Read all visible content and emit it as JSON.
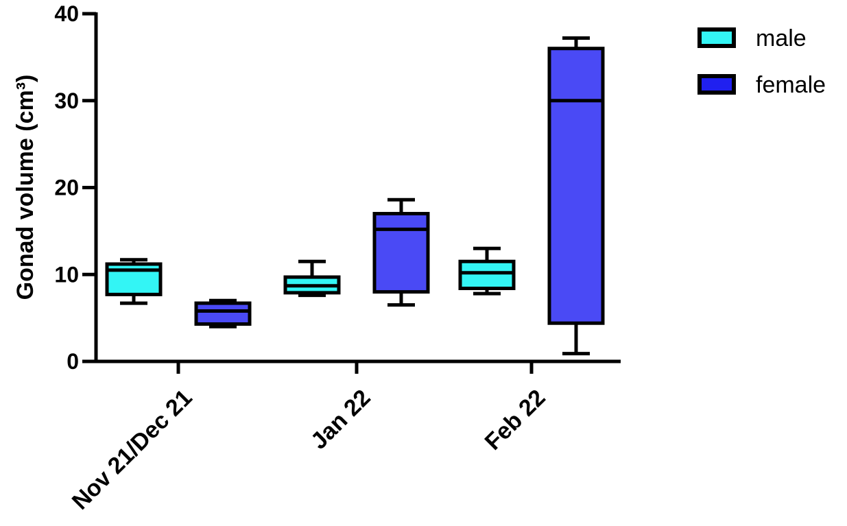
{
  "chart_data": {
    "type": "box",
    "ylabel": "Gonad volume (cm³)",
    "ylim": [
      0,
      40
    ],
    "yticks": [
      0,
      10,
      20,
      30,
      40
    ],
    "categories": [
      "Nov 21/Dec 21",
      "Jan 22",
      "Feb 22"
    ],
    "legend_position": "top-right",
    "series": [
      {
        "name": "male",
        "color": "#33f5f5",
        "boxes": [
          {
            "category": "Nov 21/Dec 21",
            "min": 6.7,
            "q1": 7.7,
            "median": 10.5,
            "q3": 11.2,
            "max": 11.7
          },
          {
            "category": "Jan 22",
            "min": 7.6,
            "q1": 7.9,
            "median": 8.7,
            "q3": 9.7,
            "max": 11.5
          },
          {
            "category": "Feb 22",
            "min": 7.8,
            "q1": 8.4,
            "median": 10.2,
            "q3": 11.5,
            "max": 13.0
          }
        ]
      },
      {
        "name": "female",
        "color": "#2020f0",
        "boxes": [
          {
            "category": "Nov 21/Dec 21",
            "min": 4.0,
            "q1": 4.3,
            "median": 5.8,
            "q3": 6.7,
            "max": 7.0
          },
          {
            "category": "Jan 22",
            "min": 6.5,
            "q1": 8.0,
            "median": 15.2,
            "q3": 17.0,
            "max": 18.6
          },
          {
            "category": "Feb 22",
            "min": 0.9,
            "q1": 4.4,
            "median": 30.0,
            "q3": 36.0,
            "max": 37.2
          }
        ]
      }
    ],
    "box_fill_light": {
      "male": "#33f5f5",
      "female": "#4a4af5"
    }
  }
}
